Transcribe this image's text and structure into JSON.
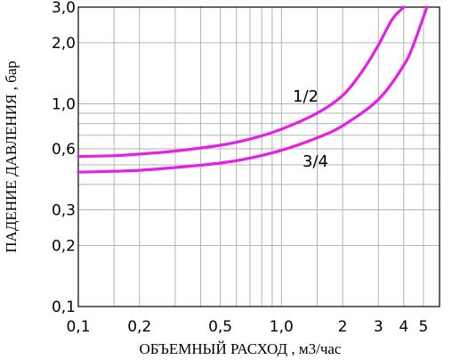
{
  "chart_data": {
    "type": "line",
    "title": "",
    "xlabel": "ОБЪЕМНЫЙ РАСХОД , м3/час",
    "ylabel": "ПАДЕНИЕ ДАВЛЕНИЯ , бар",
    "xscale": "log",
    "yscale": "log",
    "xlim": [
      0.1,
      6
    ],
    "ylim": [
      0.1,
      3.0
    ],
    "grid": true,
    "x_ticks": [
      "0,1",
      "0,2",
      "0,5",
      "1,0",
      "2",
      "3",
      "4",
      "5"
    ],
    "x_tick_values": [
      0.1,
      0.2,
      0.5,
      1.0,
      2,
      3,
      4,
      5
    ],
    "y_ticks": [
      "0,1",
      "0,2",
      "0,3",
      "0,6",
      "1,0",
      "2,0",
      "3,0"
    ],
    "y_tick_values": [
      0.1,
      0.2,
      0.3,
      0.6,
      1.0,
      2.0,
      3.0
    ],
    "x_grid_values": [
      0.1,
      0.15,
      0.2,
      0.3,
      0.4,
      0.5,
      0.6,
      0.7,
      0.8,
      0.9,
      1,
      1.5,
      2,
      3,
      4,
      5
    ],
    "y_grid_values": [
      0.1,
      0.2,
      0.3,
      0.4,
      0.5,
      0.6,
      0.7,
      0.8,
      0.9,
      1,
      2,
      3
    ],
    "line_color": "#e61ee6",
    "series": [
      {
        "name": "1/2",
        "x": [
          0.1,
          0.15,
          0.2,
          0.3,
          0.5,
          0.7,
          1.0,
          1.5,
          2.0,
          2.5,
          3.0,
          3.5,
          4.0
        ],
        "y": [
          0.55,
          0.555,
          0.565,
          0.585,
          0.625,
          0.67,
          0.75,
          0.9,
          1.1,
          1.45,
          1.95,
          2.6,
          3.0
        ]
      },
      {
        "name": "3/4",
        "x": [
          0.1,
          0.15,
          0.2,
          0.3,
          0.5,
          0.7,
          1.0,
          1.5,
          2.0,
          3.0,
          4.0,
          4.5,
          5.2
        ],
        "y": [
          0.46,
          0.465,
          0.47,
          0.485,
          0.51,
          0.54,
          0.59,
          0.68,
          0.78,
          1.05,
          1.55,
          2.0,
          3.0
        ]
      }
    ]
  }
}
